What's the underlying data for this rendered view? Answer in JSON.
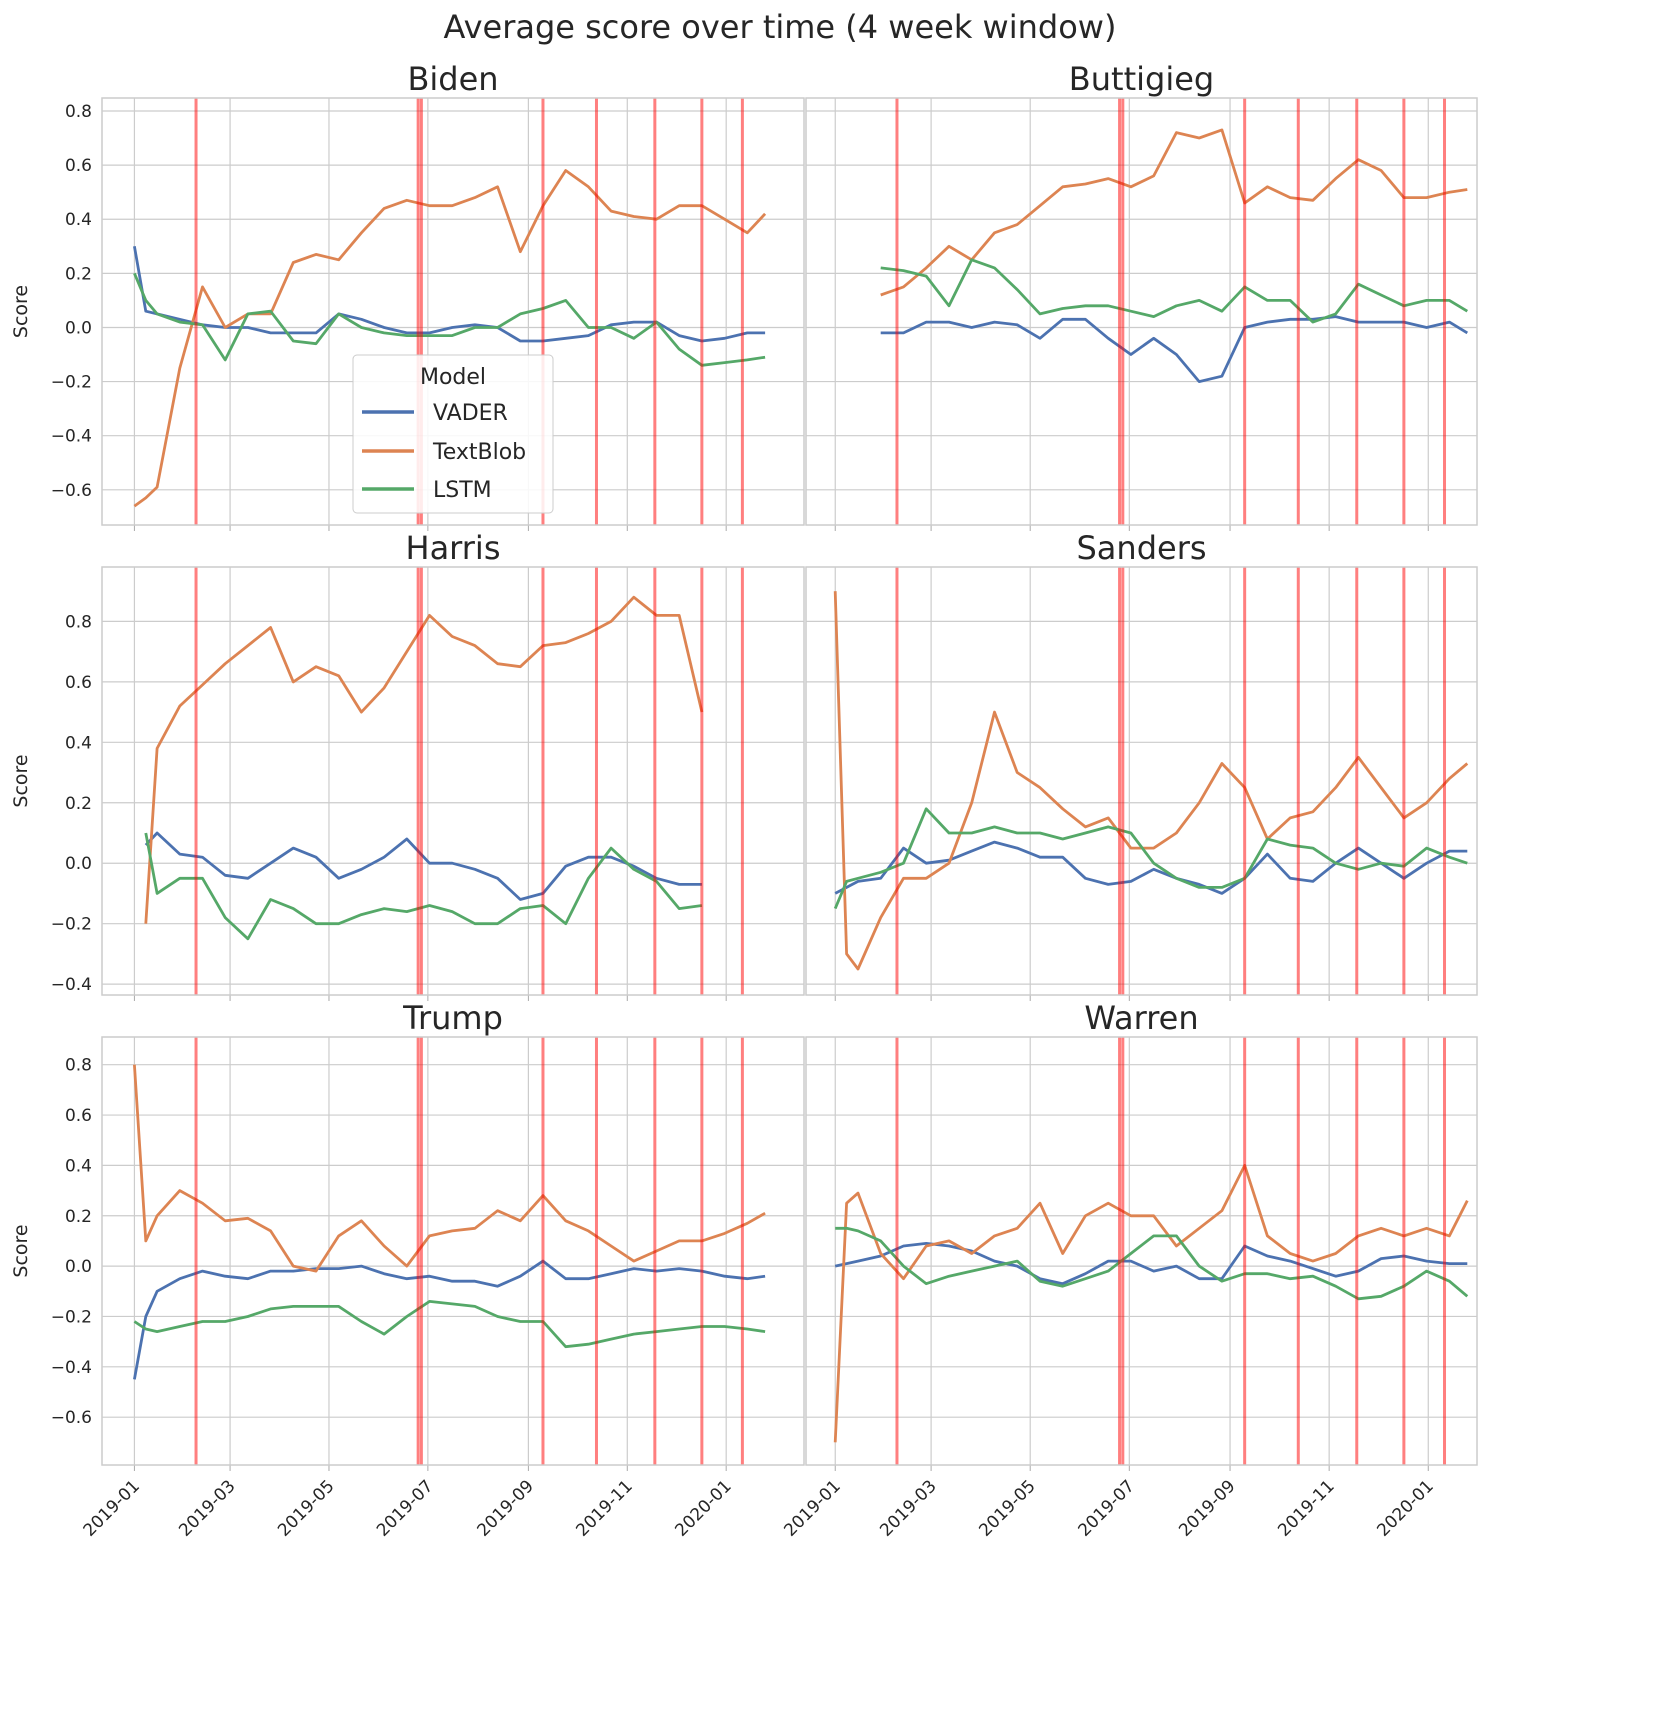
{
  "chart_data": {
    "type": "line",
    "title": "Average score over time (4 week window)",
    "ylabel": "Score",
    "xlabel": "",
    "grid": true,
    "legend": {
      "title": "Model",
      "placement": "lower-center of first panel",
      "entries": [
        "VADER",
        "TextBlob",
        "LSTM"
      ]
    },
    "colors": {
      "VADER": "#4c72b0",
      "TextBlob": "#dd8452",
      "LSTM": "#55a868",
      "event_line": "#ff0000"
    },
    "x_tick_labels": [
      "2019-01",
      "2019-03",
      "2019-05",
      "2019-07",
      "2019-09",
      "2019-11",
      "2020-01"
    ],
    "x_ticks": [
      "2019-01-01",
      "2019-03-01",
      "2019-05-01",
      "2019-07-01",
      "2019-09-01",
      "2019-11-01",
      "2020-01-01"
    ],
    "xlim_left": [
      "2018-12-12",
      "2020-02-18"
    ],
    "xlim_right": [
      "2018-12-14",
      "2020-01-31"
    ],
    "rows": [
      {
        "ylim": [
          -0.73,
          0.848
        ],
        "yticks": [
          -0.6,
          -0.4,
          -0.2,
          0.0,
          0.2,
          0.4,
          0.6,
          0.8
        ]
      },
      {
        "ylim": [
          -0.436,
          0.98
        ],
        "yticks": [
          -0.4,
          -0.2,
          0.0,
          0.2,
          0.4,
          0.6,
          0.8
        ]
      },
      {
        "ylim": [
          -0.79,
          0.91
        ],
        "yticks": [
          -0.6,
          -0.4,
          -0.2,
          0.0,
          0.2,
          0.4,
          0.6,
          0.8
        ]
      }
    ],
    "event_dates": [
      "2019-02-08",
      "2019-06-25",
      "2019-06-27",
      "2019-09-10",
      "2019-10-13",
      "2019-11-18",
      "2019-12-17",
      "2020-01-11"
    ],
    "x": [
      "2019-01-01",
      "2019-01-08",
      "2019-01-15",
      "2019-01-29",
      "2019-02-12",
      "2019-02-26",
      "2019-03-12",
      "2019-03-26",
      "2019-04-09",
      "2019-04-23",
      "2019-05-07",
      "2019-05-21",
      "2019-06-04",
      "2019-06-18",
      "2019-07-02",
      "2019-07-16",
      "2019-07-30",
      "2019-08-13",
      "2019-08-27",
      "2019-09-10",
      "2019-09-24",
      "2019-10-08",
      "2019-10-22",
      "2019-11-05",
      "2019-11-19",
      "2019-12-03",
      "2019-12-17",
      "2019-12-31",
      "2020-01-14",
      "2020-01-25"
    ],
    "panels": [
      {
        "title": "Biden",
        "series": [
          {
            "name": "VADER",
            "values": [
              0.3,
              0.06,
              0.05,
              0.03,
              0.01,
              0.0,
              0.0,
              -0.02,
              -0.02,
              -0.02,
              0.05,
              0.03,
              0.0,
              -0.02,
              -0.02,
              0.0,
              0.01,
              0.0,
              -0.05,
              -0.05,
              -0.04,
              -0.03,
              0.01,
              0.02,
              0.02,
              -0.03,
              -0.05,
              -0.04,
              -0.02,
              -0.02
            ]
          },
          {
            "name": "TextBlob",
            "values": [
              -0.66,
              -0.63,
              -0.59,
              -0.15,
              0.15,
              0.0,
              0.05,
              0.05,
              0.24,
              0.27,
              0.25,
              0.35,
              0.44,
              0.47,
              0.45,
              0.45,
              0.48,
              0.52,
              0.28,
              0.45,
              0.58,
              0.52,
              0.43,
              0.41,
              0.4,
              0.45,
              0.45,
              0.4,
              0.35,
              0.42
            ]
          },
          {
            "name": "LSTM",
            "values": [
              0.2,
              0.1,
              0.05,
              0.02,
              0.01,
              -0.12,
              0.05,
              0.06,
              -0.05,
              -0.06,
              0.05,
              0.0,
              -0.02,
              -0.03,
              -0.03,
              -0.03,
              0.0,
              0.0,
              0.05,
              0.07,
              0.1,
              0.0,
              0.0,
              -0.04,
              0.02,
              -0.08,
              -0.14,
              -0.13,
              -0.12,
              -0.11
            ]
          }
        ]
      },
      {
        "title": "Buttigieg",
        "series": [
          {
            "name": "VADER",
            "values": [
              null,
              null,
              null,
              -0.02,
              -0.02,
              0.02,
              0.02,
              0.0,
              0.02,
              0.01,
              -0.04,
              0.03,
              0.03,
              -0.04,
              -0.1,
              -0.04,
              -0.1,
              -0.2,
              -0.18,
              0.0,
              0.02,
              0.03,
              0.03,
              0.04,
              0.02,
              0.02,
              0.02,
              0.0,
              0.02,
              -0.02
            ]
          },
          {
            "name": "TextBlob",
            "values": [
              null,
              null,
              null,
              0.12,
              0.15,
              0.22,
              0.3,
              0.25,
              0.35,
              0.38,
              0.45,
              0.52,
              0.53,
              0.55,
              0.52,
              0.56,
              0.72,
              0.7,
              0.73,
              0.46,
              0.52,
              0.48,
              0.47,
              0.55,
              0.62,
              0.58,
              0.48,
              0.48,
              0.5,
              0.51
            ]
          },
          {
            "name": "LSTM",
            "values": [
              null,
              null,
              null,
              0.22,
              0.21,
              0.19,
              0.08,
              0.25,
              0.22,
              0.14,
              0.05,
              0.07,
              0.08,
              0.08,
              0.06,
              0.04,
              0.08,
              0.1,
              0.06,
              0.15,
              0.1,
              0.1,
              0.02,
              0.05,
              0.16,
              0.12,
              0.08,
              0.1,
              0.1,
              0.06
            ]
          }
        ]
      },
      {
        "title": "Harris",
        "series": [
          {
            "name": "VADER",
            "values": [
              null,
              0.06,
              0.1,
              0.03,
              0.02,
              -0.04,
              -0.05,
              0.0,
              0.05,
              0.02,
              -0.05,
              -0.02,
              0.02,
              0.08,
              0.0,
              0.0,
              -0.02,
              -0.05,
              -0.12,
              -0.1,
              -0.01,
              0.02,
              0.02,
              -0.01,
              -0.05,
              -0.07,
              -0.07,
              null,
              null,
              null
            ]
          },
          {
            "name": "TextBlob",
            "values": [
              null,
              -0.2,
              0.38,
              0.52,
              0.59,
              0.66,
              0.72,
              0.78,
              0.6,
              0.65,
              0.62,
              0.5,
              0.58,
              0.7,
              0.82,
              0.75,
              0.72,
              0.66,
              0.65,
              0.72,
              0.73,
              0.76,
              0.8,
              0.88,
              0.82,
              0.82,
              0.5,
              null,
              null,
              null
            ]
          },
          {
            "name": "LSTM",
            "values": [
              null,
              0.1,
              -0.1,
              -0.05,
              -0.05,
              -0.18,
              -0.25,
              -0.12,
              -0.15,
              -0.2,
              -0.2,
              -0.17,
              -0.15,
              -0.16,
              -0.14,
              -0.16,
              -0.2,
              -0.2,
              -0.15,
              -0.14,
              -0.2,
              -0.05,
              0.05,
              -0.02,
              -0.06,
              -0.15,
              -0.14,
              null,
              null,
              null
            ]
          }
        ]
      },
      {
        "title": "Sanders",
        "series": [
          {
            "name": "VADER",
            "values": [
              -0.1,
              -0.08,
              -0.06,
              -0.05,
              0.05,
              0.0,
              0.01,
              0.04,
              0.07,
              0.05,
              0.02,
              0.02,
              -0.05,
              -0.07,
              -0.06,
              -0.02,
              -0.05,
              -0.07,
              -0.1,
              -0.05,
              0.03,
              -0.05,
              -0.06,
              0.0,
              0.05,
              0.0,
              -0.05,
              0.0,
              0.04,
              0.04
            ]
          },
          {
            "name": "TextBlob",
            "values": [
              0.9,
              -0.3,
              -0.35,
              -0.18,
              -0.05,
              -0.05,
              0.0,
              0.2,
              0.5,
              0.3,
              0.25,
              0.18,
              0.12,
              0.15,
              0.05,
              0.05,
              0.1,
              0.2,
              0.33,
              0.25,
              0.08,
              0.15,
              0.17,
              0.25,
              0.35,
              0.25,
              0.15,
              0.2,
              0.28,
              0.33
            ]
          },
          {
            "name": "LSTM",
            "values": [
              -0.15,
              -0.06,
              -0.05,
              -0.03,
              0.0,
              0.18,
              0.1,
              0.1,
              0.12,
              0.1,
              0.1,
              0.08,
              0.1,
              0.12,
              0.1,
              0.0,
              -0.05,
              -0.08,
              -0.08,
              -0.05,
              0.08,
              0.06,
              0.05,
              0.0,
              -0.02,
              0.0,
              -0.01,
              0.05,
              0.02,
              0.0
            ]
          }
        ]
      },
      {
        "title": "Trump",
        "series": [
          {
            "name": "VADER",
            "values": [
              -0.45,
              -0.2,
              -0.1,
              -0.05,
              -0.02,
              -0.04,
              -0.05,
              -0.02,
              -0.02,
              -0.01,
              -0.01,
              0.0,
              -0.03,
              -0.05,
              -0.04,
              -0.06,
              -0.06,
              -0.08,
              -0.04,
              0.02,
              -0.05,
              -0.05,
              -0.03,
              -0.01,
              -0.02,
              -0.01,
              -0.02,
              -0.04,
              -0.05,
              -0.04
            ]
          },
          {
            "name": "TextBlob",
            "values": [
              0.8,
              0.1,
              0.2,
              0.3,
              0.25,
              0.18,
              0.19,
              0.14,
              0.0,
              -0.02,
              0.12,
              0.18,
              0.08,
              0.0,
              0.12,
              0.14,
              0.15,
              0.22,
              0.18,
              0.28,
              0.18,
              0.14,
              0.08,
              0.02,
              0.06,
              0.1,
              0.1,
              0.13,
              0.17,
              0.21
            ]
          },
          {
            "name": "LSTM",
            "values": [
              -0.22,
              -0.25,
              -0.26,
              -0.24,
              -0.22,
              -0.22,
              -0.2,
              -0.17,
              -0.16,
              -0.16,
              -0.16,
              -0.22,
              -0.27,
              -0.2,
              -0.14,
              -0.15,
              -0.16,
              -0.2,
              -0.22,
              -0.22,
              -0.32,
              -0.31,
              -0.29,
              -0.27,
              -0.26,
              -0.25,
              -0.24,
              -0.24,
              -0.25,
              -0.26
            ]
          }
        ]
      },
      {
        "title": "Warren",
        "series": [
          {
            "name": "VADER",
            "values": [
              0.0,
              0.01,
              0.02,
              0.04,
              0.08,
              0.09,
              0.08,
              0.06,
              0.02,
              0.0,
              -0.05,
              -0.07,
              -0.03,
              0.02,
              0.02,
              -0.02,
              0.0,
              -0.05,
              -0.05,
              0.08,
              0.04,
              0.02,
              -0.01,
              -0.04,
              -0.02,
              0.03,
              0.04,
              0.02,
              0.01,
              0.01
            ]
          },
          {
            "name": "TextBlob",
            "values": [
              -0.7,
              0.25,
              0.29,
              0.05,
              -0.05,
              0.08,
              0.1,
              0.05,
              0.12,
              0.15,
              0.25,
              0.05,
              0.2,
              0.25,
              0.2,
              0.2,
              0.08,
              0.15,
              0.22,
              0.4,
              0.12,
              0.05,
              0.02,
              0.05,
              0.12,
              0.15,
              0.12,
              0.15,
              0.12,
              0.26
            ]
          },
          {
            "name": "LSTM",
            "values": [
              0.15,
              0.15,
              0.14,
              0.1,
              0.0,
              -0.07,
              -0.04,
              -0.02,
              0.0,
              0.02,
              -0.06,
              -0.08,
              -0.05,
              -0.02,
              0.05,
              0.12,
              0.12,
              0.0,
              -0.06,
              -0.03,
              -0.03,
              -0.05,
              -0.04,
              -0.08,
              -0.13,
              -0.12,
              -0.08,
              -0.02,
              -0.06,
              -0.12
            ]
          }
        ]
      }
    ]
  }
}
